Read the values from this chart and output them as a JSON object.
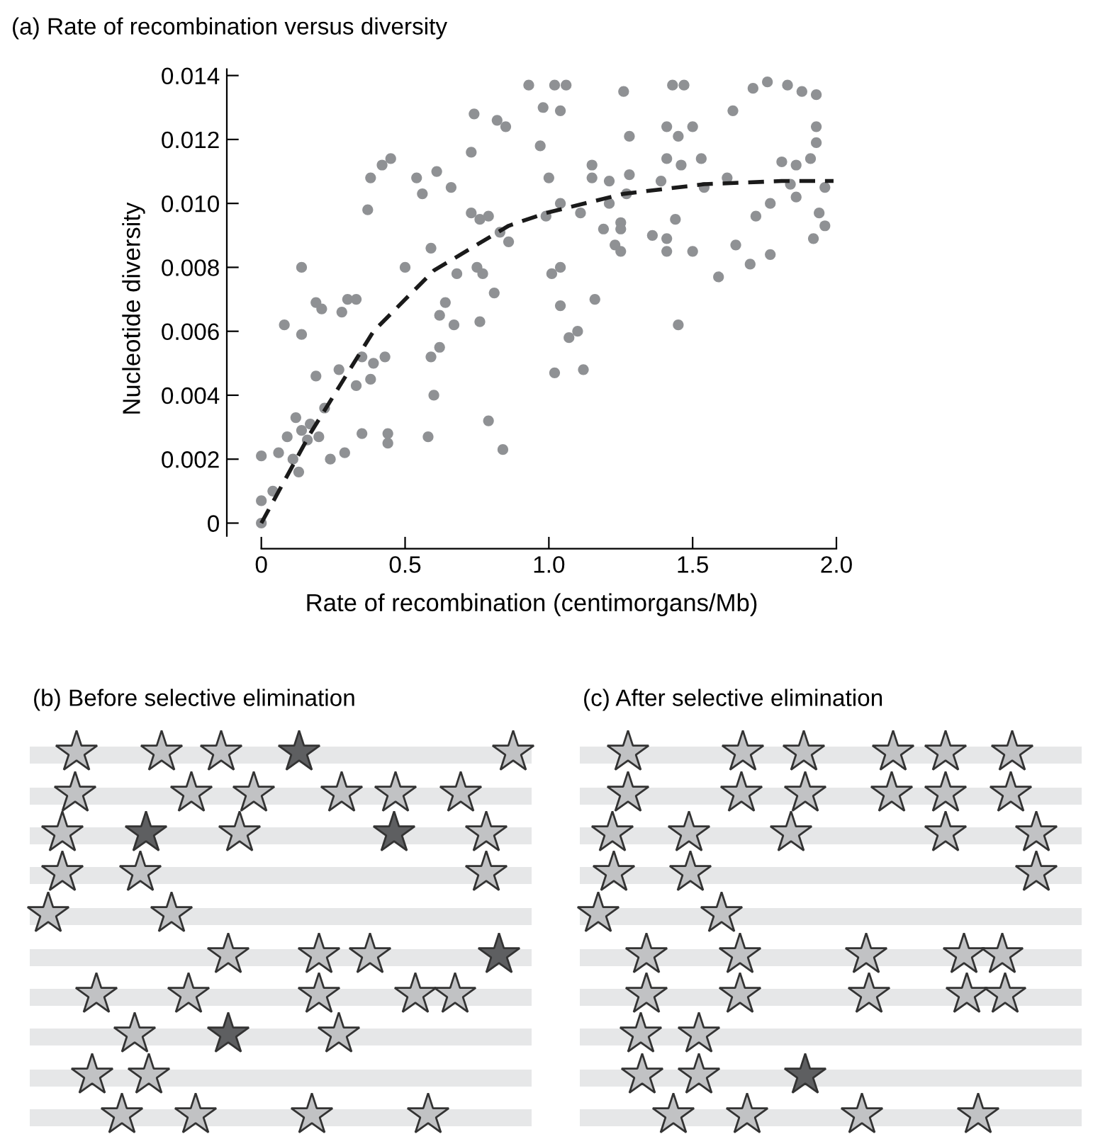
{
  "chart_data": [
    {
      "type": "scatter",
      "title": "(a) Rate of recombination versus diversity",
      "xlabel": "Rate of recombination (centimorgans/Mb)",
      "ylabel": "Nucleotide diversity",
      "xlim": [
        -0.12,
        2.0
      ],
      "ylim": [
        -0.0008,
        0.0142
      ],
      "xticks": [
        {
          "value": 0,
          "label": "0"
        },
        {
          "value": 0.5,
          "label": "0.5"
        },
        {
          "value": 1,
          "label": "1.0"
        },
        {
          "value": 1.5,
          "label": "1.5"
        },
        {
          "value": 2,
          "label": "2.0"
        }
      ],
      "yticks": [
        {
          "value": 0,
          "label": "0"
        },
        {
          "value": 0.002,
          "label": "0.002"
        },
        {
          "value": 0.004,
          "label": "0.004"
        },
        {
          "value": 0.006,
          "label": "0.006"
        },
        {
          "value": 0.008,
          "label": "0.008"
        },
        {
          "value": 0.01,
          "label": "0.010"
        },
        {
          "value": 0.012,
          "label": "0.012"
        },
        {
          "value": 0.014,
          "label": "0.014"
        }
      ],
      "grid": false,
      "legend": false,
      "series": [
        {
          "type": "scatter",
          "color": "#8f9194",
          "marker": "circle",
          "x": [
            0,
            0,
            0,
            0.04,
            0.06,
            0.08,
            0.09,
            0.11,
            0.12,
            0.13,
            0.14,
            0.14,
            0.14,
            0.16,
            0.17,
            0.19,
            0.19,
            0.2,
            0.21,
            0.22,
            0.24,
            0.27,
            0.28,
            0.29,
            0.3,
            0.33,
            0.33,
            0.35,
            0.35,
            0.37,
            0.38,
            0.38,
            0.39,
            0.42,
            0.43,
            0.44,
            0.44,
            0.45,
            0.5,
            0.54,
            0.56,
            0.58,
            0.59,
            0.59,
            0.6,
            0.61,
            0.62,
            0.62,
            0.64,
            0.66,
            0.67,
            0.68,
            0.73,
            0.73,
            0.74,
            0.75,
            0.76,
            0.76,
            0.77,
            0.79,
            0.79,
            0.81,
            0.82,
            0.83,
            0.84,
            0.85,
            0.86,
            0.93,
            0.98,
            0.97,
            1.02,
            1.06,
            1.04,
            1.0,
            0.99,
            1.04,
            1.01,
            1.04,
            1.04,
            1.07,
            1.1,
            1.02,
            1.12,
            1.11,
            1.15,
            1.15,
            1.16,
            1.19,
            1.21,
            1.21,
            1.23,
            1.25,
            1.25,
            1.25,
            1.26,
            1.27,
            1.28,
            1.28,
            1.36,
            1.39,
            1.41,
            1.41,
            1.41,
            1.41,
            1.43,
            1.45,
            1.46,
            1.44,
            1.45,
            1.47,
            1.5,
            1.5,
            1.53,
            1.54,
            1.59,
            1.62,
            1.64,
            1.65,
            1.7,
            1.71,
            1.72,
            1.76,
            1.77,
            1.77,
            1.81,
            1.83,
            1.84,
            1.86,
            1.86,
            1.88,
            1.91,
            1.92,
            1.93,
            1.93,
            1.93,
            1.94,
            1.96,
            1.96
          ],
          "values": [
            0.0,
            0.0007,
            0.0021,
            0.001,
            0.0022,
            0.0062,
            0.0027,
            0.002,
            0.0033,
            0.0016,
            0.0059,
            0.008,
            0.0029,
            0.0026,
            0.0031,
            0.0046,
            0.0069,
            0.0027,
            0.0067,
            0.0036,
            0.002,
            0.0048,
            0.0066,
            0.0022,
            0.007,
            0.007,
            0.0043,
            0.0052,
            0.0028,
            0.0098,
            0.0045,
            0.0108,
            0.005,
            0.0112,
            0.0052,
            0.0028,
            0.0025,
            0.0114,
            0.008,
            0.0108,
            0.0103,
            0.0027,
            0.0086,
            0.0052,
            0.004,
            0.011,
            0.0065,
            0.0055,
            0.0069,
            0.0105,
            0.0062,
            0.0078,
            0.0097,
            0.0116,
            0.0128,
            0.008,
            0.0063,
            0.0095,
            0.0078,
            0.0032,
            0.0096,
            0.0072,
            0.0126,
            0.0091,
            0.0023,
            0.0124,
            0.0088,
            0.0137,
            0.013,
            0.0118,
            0.0137,
            0.0137,
            0.0129,
            0.0108,
            0.0096,
            0.01,
            0.0078,
            0.008,
            0.0068,
            0.0058,
            0.006,
            0.0047,
            0.0048,
            0.0097,
            0.0112,
            0.0108,
            0.007,
            0.0092,
            0.0107,
            0.01,
            0.0087,
            0.0094,
            0.0092,
            0.0085,
            0.0135,
            0.0103,
            0.0121,
            0.0109,
            0.009,
            0.0107,
            0.0124,
            0.0114,
            0.0089,
            0.0085,
            0.0137,
            0.0121,
            0.0112,
            0.0095,
            0.0062,
            0.0137,
            0.0124,
            0.0085,
            0.0114,
            0.0105,
            0.0077,
            0.0108,
            0.0129,
            0.0087,
            0.0081,
            0.0136,
            0.0096,
            0.0138,
            0.01,
            0.0084,
            0.0113,
            0.0137,
            0.0106,
            0.0112,
            0.0102,
            0.0135,
            0.0114,
            0.0089,
            0.0134,
            0.0119,
            0.0124,
            0.0097,
            0.0093,
            0.0105
          ]
        },
        {
          "type": "line",
          "color": "#1a1a1a",
          "line_style": "dashed",
          "marker": "none",
          "x": [
            0,
            0.17,
            0.39,
            0.6,
            0.86,
            0.99,
            1.26,
            1.54,
            1.81,
            1.99
          ],
          "values": [
            0,
            0.0028,
            0.006,
            0.0079,
            0.0093,
            0.0097,
            0.0103,
            0.0106,
            0.0107,
            0.0107
          ]
        }
      ]
    },
    {
      "type": "other",
      "title": "(b) Before selective elimination"
    },
    {
      "type": "other",
      "title": "(c) After selective elimination"
    }
  ]
}
